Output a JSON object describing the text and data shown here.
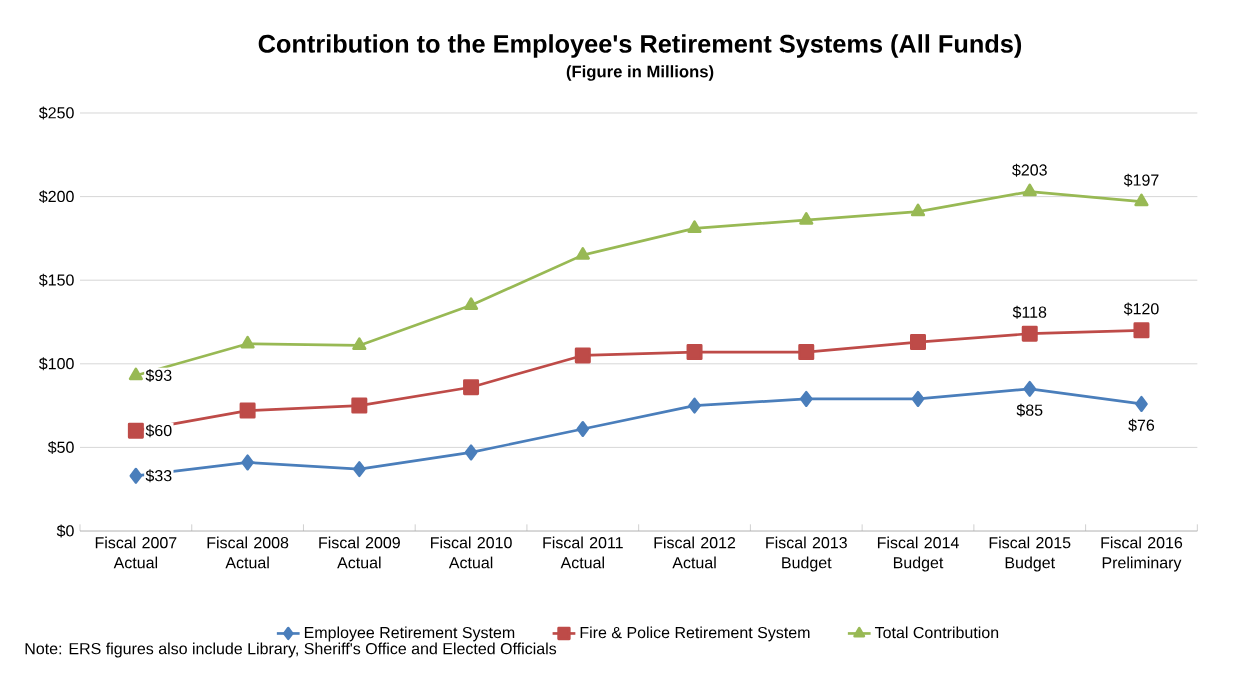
{
  "chart_data": {
    "type": "line",
    "title": "Contribution to the Employee's Retirement Systems (All Funds)",
    "subtitle": "(Figure in Millions)",
    "categories": [
      "Fiscal 2007 Actual",
      "Fiscal 2008 Actual",
      "Fiscal 2009 Actual",
      "Fiscal 2010 Actual",
      "Fiscal 2011 Actual",
      "Fiscal 2012 Actual",
      "Fiscal 2013 Budget",
      "Fiscal 2014 Budget",
      "Fiscal 2015 Budget",
      "Fiscal 2016 Preliminary"
    ],
    "series": [
      {
        "name": "Employee Retirement System",
        "color": "#4a7ebb",
        "marker": "diamond",
        "values": [
          33,
          41,
          37,
          47,
          61,
          75,
          79,
          79,
          85,
          76
        ],
        "value_labels": [
          "$33",
          null,
          null,
          null,
          null,
          null,
          null,
          null,
          "$85",
          "$76"
        ]
      },
      {
        "name": "Fire & Police Retirement System",
        "color": "#be4b48",
        "marker": "square",
        "values": [
          60,
          72,
          75,
          86,
          105,
          107,
          107,
          113,
          118,
          120
        ],
        "value_labels": [
          "$60",
          null,
          null,
          null,
          null,
          null,
          null,
          null,
          "$118",
          "$120"
        ]
      },
      {
        "name": "Total Contribution",
        "color": "#98b954",
        "marker": "triangle",
        "values": [
          93,
          112,
          111,
          135,
          165,
          181,
          186,
          191,
          203,
          197
        ],
        "value_labels": [
          "$93",
          null,
          null,
          null,
          null,
          null,
          null,
          null,
          "$203",
          "$197"
        ]
      }
    ],
    "ylim": [
      0,
      250
    ],
    "yticks": [
      {
        "value": 0,
        "label": "$0"
      },
      {
        "value": 50,
        "label": "$50"
      },
      {
        "value": 100,
        "label": "$100"
      },
      {
        "value": 150,
        "label": "$150"
      },
      {
        "value": 200,
        "label": "$200"
      },
      {
        "value": 250,
        "label": "$250"
      }
    ],
    "grid": "y",
    "legend": "bottom",
    "line_style": "solid",
    "annotations": [
      "Note: ERS figures also include Library, Sheriff's Office and Elected Officials"
    ]
  }
}
